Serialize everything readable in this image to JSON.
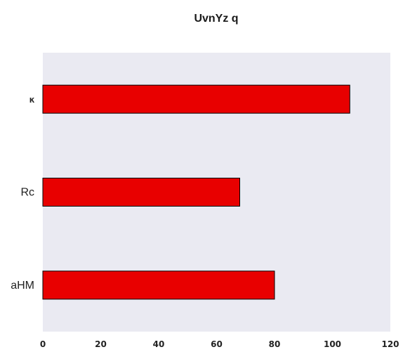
{
  "chart_data": {
    "type": "bar",
    "orientation": "horizontal",
    "title": "UvnYz q",
    "xlabel": "",
    "ylabel": "",
    "categories": [
      "ĸ",
      "Rc",
      "aHM"
    ],
    "values": [
      106,
      68,
      80
    ],
    "xlim": [
      0,
      120
    ],
    "xticks": [
      0,
      20,
      40,
      60,
      80,
      100,
      120
    ],
    "grid": false,
    "bar_color": "#e80000",
    "bar_edge_color": "#000000",
    "plot_background": "#eaeaf2"
  }
}
